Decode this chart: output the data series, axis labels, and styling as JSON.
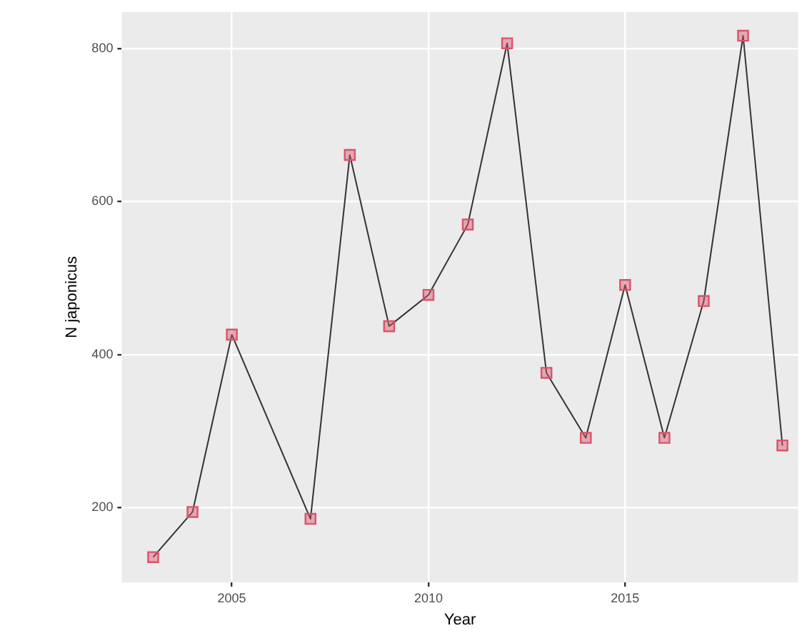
{
  "chart_data": {
    "type": "line",
    "xlabel": "Year",
    "ylabel": "N japonicus",
    "x": [
      2003,
      2004,
      2005,
      2007,
      2008,
      2009,
      2010,
      2011,
      2012,
      2013,
      2014,
      2015,
      2016,
      2017,
      2018,
      2019
    ],
    "series": [
      {
        "color": "#d9546a",
        "values": [
          135,
          194,
          426,
          185,
          661,
          437,
          478,
          570,
          807,
          376,
          291,
          491,
          291,
          470,
          817,
          281
        ]
      }
    ],
    "xlim": [
      2002.2,
      2019.4
    ],
    "xticks": [
      2005,
      2010,
      2015
    ],
    "ylim": [
      102,
      848
    ],
    "yticks": [
      200,
      400,
      600,
      800
    ],
    "grid": true,
    "marker": "square",
    "line_style": "solid"
  }
}
